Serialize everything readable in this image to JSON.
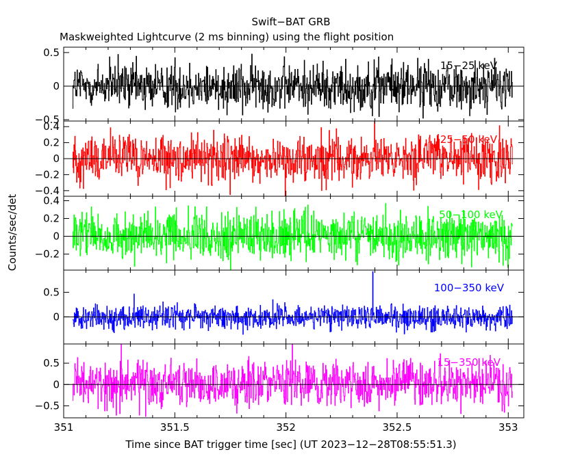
{
  "chart_data": {
    "type": "line",
    "title": "Swift−BAT GRB",
    "subtitle": "Maskweighted Lightcurve (2 ms binning) using the flight position",
    "xlabel": "Time since BAT trigger time [sec] (UT 2023−12−28T08:55:51.3)",
    "ylabel": "Counts/sec/det",
    "xlim": [
      351.0,
      353.07
    ],
    "data_xrange": [
      351.04,
      353.02
    ],
    "bin_width": 0.002,
    "x_ticks": [
      351,
      351.5,
      352,
      352.5,
      353
    ],
    "x_tick_labels": [
      "351",
      "351.5",
      "352",
      "352.5",
      "353"
    ],
    "grid": false,
    "panels": [
      {
        "label": "15−25 keV",
        "color": "#000000",
        "ylim": [
          -0.52,
          0.58
        ],
        "y_ticks": [
          0.5,
          0,
          -0.5
        ],
        "y_tick_labels": [
          "0.5",
          "0",
          "−0.5"
        ],
        "noise_amplitude": 0.2,
        "spikes": []
      },
      {
        "label": "25−50 keV",
        "color": "#ff0000",
        "ylim": [
          -0.47,
          0.47
        ],
        "y_ticks": [
          0.4,
          0.2,
          0,
          -0.2,
          -0.4
        ],
        "y_tick_labels": [
          "0.4",
          "0.2",
          "0",
          "−0.2",
          "−0.4"
        ],
        "noise_amplitude": 0.17,
        "spikes": []
      },
      {
        "label": "50−100 keV",
        "color": "#00ff00",
        "ylim": [
          -0.38,
          0.45
        ],
        "y_ticks": [
          0.4,
          0.2,
          0,
          -0.2
        ],
        "y_tick_labels": [
          "0.4",
          "0.2",
          "0",
          "−0.2"
        ],
        "noise_amplitude": 0.15,
        "spikes": []
      },
      {
        "label": "100−350 keV",
        "color": "#0000ff",
        "ylim": [
          -0.55,
          0.95
        ],
        "y_ticks": [
          0.5,
          0
        ],
        "y_tick_labels": [
          "0.5",
          "0"
        ],
        "noise_amplitude": 0.14,
        "spikes": [
          {
            "x": 352.39,
            "y": 0.92
          }
        ]
      },
      {
        "label": "15−350 keV",
        "color": "#ff00ff",
        "ylim": [
          -0.78,
          0.95
        ],
        "y_ticks": [
          0.5,
          0,
          -0.5
        ],
        "y_tick_labels": [
          "0.5",
          "0",
          "−0.5"
        ],
        "noise_amplitude": 0.3,
        "spikes": []
      }
    ]
  }
}
